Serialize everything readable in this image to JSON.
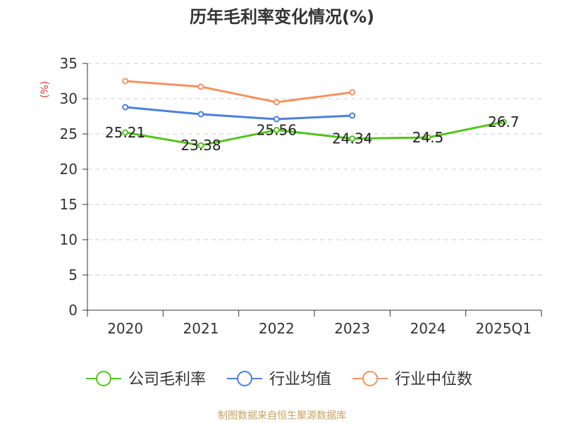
{
  "chart_data": {
    "type": "line",
    "title": "历年毛利率变化情况(%)",
    "ylabel": "(%)",
    "xlabel": "",
    "categories": [
      "2020",
      "2021",
      "2022",
      "2023",
      "2024",
      "2025Q1"
    ],
    "ylim": [
      0,
      35
    ],
    "yticks": [
      0,
      5,
      10,
      15,
      20,
      25,
      30,
      35
    ],
    "grid": true,
    "legend_position": "bottom",
    "series": [
      {
        "name": "公司毛利率",
        "color": "#52c41a",
        "values": [
          25.21,
          23.38,
          25.56,
          24.34,
          24.5,
          26.7
        ],
        "labels": [
          "25.21",
          "23.38",
          "25.56",
          "24.34",
          "24.5",
          "26.7"
        ]
      },
      {
        "name": "行业均值",
        "color": "#4a7fe0",
        "values": [
          28.8,
          27.8,
          27.1,
          27.6,
          null,
          null
        ]
      },
      {
        "name": "行业中位数",
        "color": "#f59260",
        "values": [
          32.5,
          31.7,
          29.5,
          30.9,
          null,
          null
        ]
      }
    ],
    "ylabel_color": "#d9342b",
    "source": "制图数据来自恒生聚源数据库",
    "source_color": "#c8a25a"
  }
}
